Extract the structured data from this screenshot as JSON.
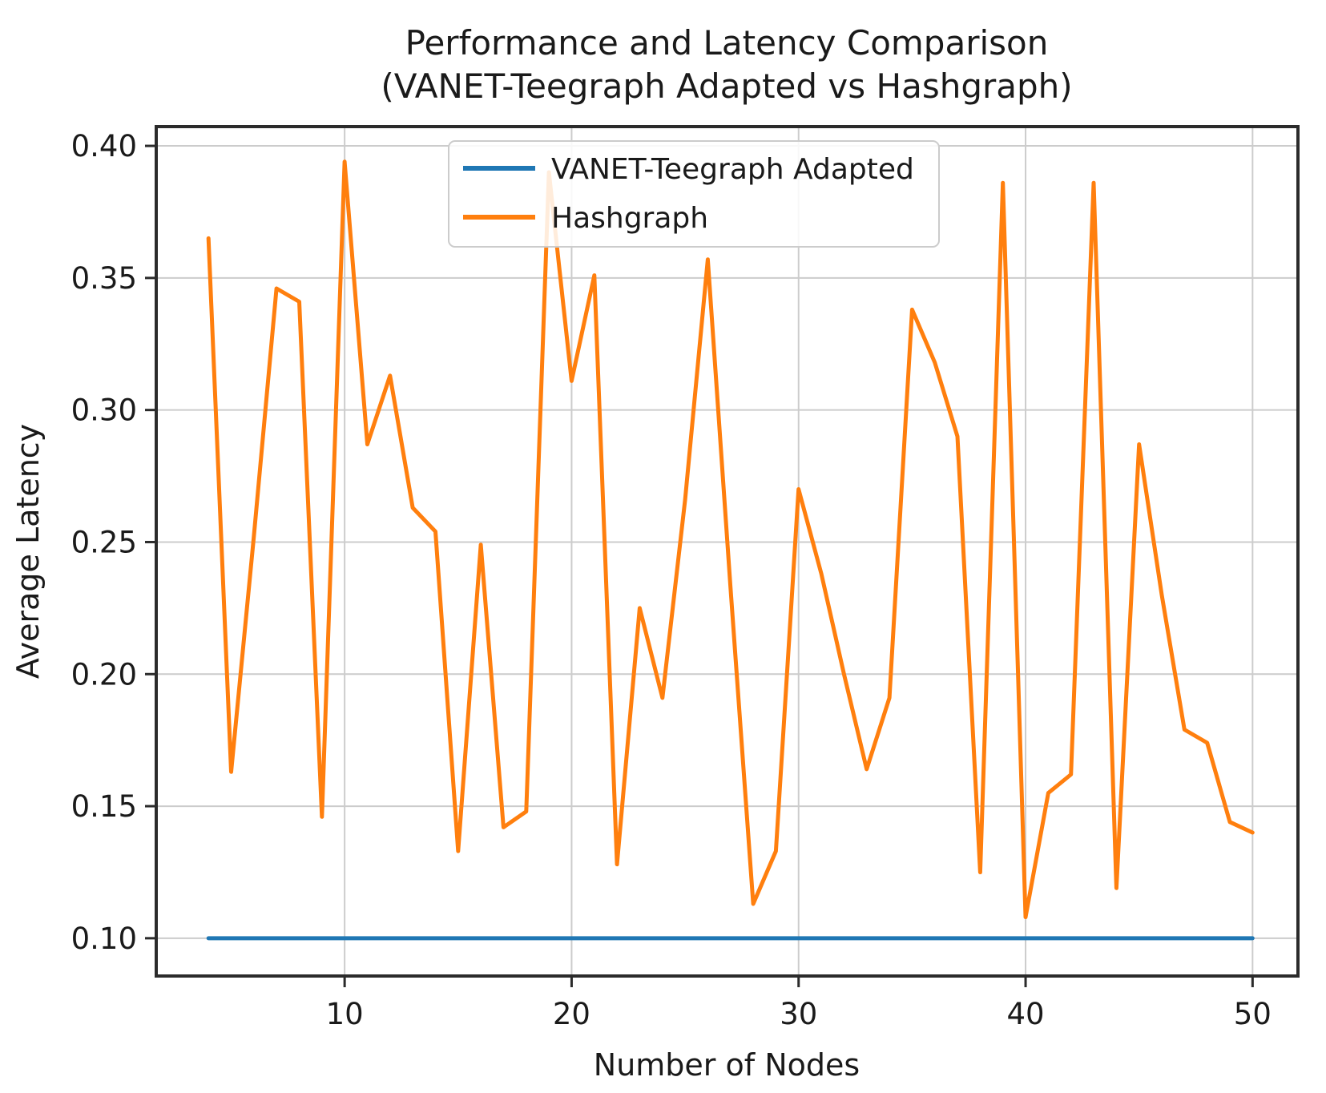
{
  "figure": {
    "background": "#ffffff"
  },
  "chart_data": {
    "type": "line",
    "title_line1": "Performance and Latency Comparison",
    "title_line2": "(VANET-Teegraph Adapted vs Hashgraph)",
    "xlabel": "Number of Nodes",
    "ylabel": "Average Latency",
    "grid": true,
    "legend_position": "upper center",
    "xlim": [
      1.7,
      52.0
    ],
    "ylim": [
      0.0857,
      0.4073
    ],
    "xticks": [
      10,
      20,
      30,
      40,
      50
    ],
    "xtick_labels": [
      "10",
      "20",
      "30",
      "40",
      "50"
    ],
    "yticks": [
      0.1,
      0.15,
      0.2,
      0.25,
      0.3,
      0.35,
      0.4
    ],
    "ytick_labels": [
      "0.10",
      "0.15",
      "0.20",
      "0.25",
      "0.30",
      "0.35",
      "0.40"
    ],
    "x": [
      4,
      5,
      6,
      7,
      8,
      9,
      10,
      11,
      12,
      13,
      14,
      15,
      16,
      17,
      18,
      19,
      20,
      21,
      22,
      23,
      24,
      25,
      26,
      27,
      28,
      29,
      30,
      31,
      32,
      33,
      34,
      35,
      36,
      37,
      38,
      39,
      40,
      41,
      42,
      43,
      44,
      45,
      46,
      47,
      48,
      49,
      50
    ],
    "series": [
      {
        "name": "VANET-Teegraph Adapted",
        "color": "#1f77b4",
        "values": [
          0.1,
          0.1,
          0.1,
          0.1,
          0.1,
          0.1,
          0.1,
          0.1,
          0.1,
          0.1,
          0.1,
          0.1,
          0.1,
          0.1,
          0.1,
          0.1,
          0.1,
          0.1,
          0.1,
          0.1,
          0.1,
          0.1,
          0.1,
          0.1,
          0.1,
          0.1,
          0.1,
          0.1,
          0.1,
          0.1,
          0.1,
          0.1,
          0.1,
          0.1,
          0.1,
          0.1,
          0.1,
          0.1,
          0.1,
          0.1,
          0.1,
          0.1,
          0.1,
          0.1,
          0.1,
          0.1,
          0.1
        ]
      },
      {
        "name": "Hashgraph",
        "color": "#ff7f0e",
        "values": [
          0.365,
          0.163,
          0.252,
          0.346,
          0.341,
          0.146,
          0.394,
          0.287,
          0.313,
          0.263,
          0.254,
          0.133,
          0.249,
          0.142,
          0.148,
          0.39,
          0.311,
          0.351,
          0.128,
          0.225,
          0.191,
          0.266,
          0.357,
          0.233,
          0.113,
          0.133,
          0.27,
          0.238,
          0.2,
          0.164,
          0.191,
          0.338,
          0.318,
          0.29,
          0.125,
          0.386,
          0.108,
          0.155,
          0.162,
          0.386,
          0.119,
          0.287,
          0.23,
          0.179,
          0.174,
          0.144,
          0.14
        ]
      }
    ],
    "colors": {
      "grid": "#cccccc",
      "spine": "#2b2b2b",
      "text": "#1a1a1a",
      "legend_border": "#cccccc",
      "legend_background": "#ffffff"
    }
  }
}
